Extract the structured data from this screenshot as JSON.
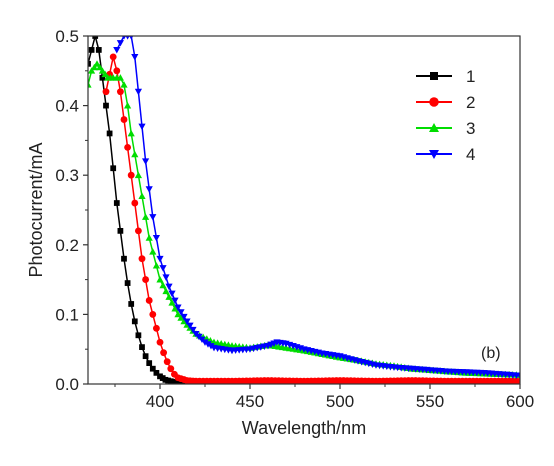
{
  "chart_data": {
    "type": "line",
    "title": "",
    "xlabel": "Wavelength/nm",
    "ylabel": "Photocurrent/mA",
    "xlim": [
      360,
      600
    ],
    "ylim": [
      0,
      0.5
    ],
    "x_ticks": [
      400,
      450,
      500,
      550,
      600
    ],
    "x_tick_labels": [
      "400",
      "450",
      "500",
      "550",
      "600"
    ],
    "y_ticks": [
      0,
      0.1,
      0.2,
      0.3,
      0.4,
      0.5
    ],
    "y_tick_labels": [
      "0.0",
      "0.1",
      "0.2",
      "0.3",
      "0.4",
      "0.5"
    ],
    "annotation": "(b)",
    "legend_position": "top-right",
    "grid": false,
    "series": [
      {
        "name": "1",
        "color": "#000000",
        "marker": "square",
        "points": [
          [
            360,
            0.46
          ],
          [
            364,
            0.5
          ],
          [
            366,
            0.48
          ],
          [
            370,
            0.4
          ],
          [
            372,
            0.36
          ],
          [
            374,
            0.31
          ],
          [
            376,
            0.26
          ],
          [
            378,
            0.22
          ],
          [
            380,
            0.18
          ],
          [
            382,
            0.145
          ],
          [
            384,
            0.115
          ],
          [
            386,
            0.09
          ],
          [
            388,
            0.07
          ],
          [
            390,
            0.053
          ],
          [
            392,
            0.04
          ],
          [
            394,
            0.03
          ],
          [
            396,
            0.022
          ],
          [
            398,
            0.016
          ],
          [
            400,
            0.011
          ],
          [
            403,
            0.006
          ],
          [
            406,
            0.004
          ],
          [
            410,
            0.002
          ],
          [
            420,
            0.002
          ],
          [
            440,
            0.002
          ],
          [
            460,
            0.002
          ],
          [
            480,
            0.002
          ],
          [
            500,
            0.002
          ],
          [
            520,
            0.002
          ],
          [
            540,
            0.002
          ],
          [
            560,
            0.002
          ],
          [
            580,
            0.002
          ],
          [
            600,
            0.002
          ]
        ]
      },
      {
        "name": "2",
        "color": "#ff0000",
        "marker": "circle",
        "points": [
          [
            370,
            0.42
          ],
          [
            374,
            0.47
          ],
          [
            376,
            0.45
          ],
          [
            378,
            0.42
          ],
          [
            380,
            0.38
          ],
          [
            382,
            0.34
          ],
          [
            384,
            0.3
          ],
          [
            386,
            0.26
          ],
          [
            388,
            0.22
          ],
          [
            390,
            0.18
          ],
          [
            392,
            0.15
          ],
          [
            394,
            0.12
          ],
          [
            396,
            0.1
          ],
          [
            398,
            0.08
          ],
          [
            400,
            0.06
          ],
          [
            402,
            0.045
          ],
          [
            404,
            0.032
          ],
          [
            406,
            0.022
          ],
          [
            408,
            0.014
          ],
          [
            410,
            0.009
          ],
          [
            415,
            0.005
          ],
          [
            420,
            0.004
          ],
          [
            440,
            0.004
          ],
          [
            460,
            0.005
          ],
          [
            480,
            0.004
          ],
          [
            500,
            0.005
          ],
          [
            520,
            0.004
          ],
          [
            540,
            0.005
          ],
          [
            560,
            0.004
          ],
          [
            580,
            0.004
          ],
          [
            600,
            0.004
          ]
        ]
      },
      {
        "name": "3",
        "color": "#00dd00",
        "marker": "triangle-up",
        "points": [
          [
            360,
            0.43
          ],
          [
            362,
            0.45
          ],
          [
            365,
            0.46
          ],
          [
            368,
            0.45
          ],
          [
            371,
            0.44
          ],
          [
            374,
            0.44
          ],
          [
            378,
            0.44
          ],
          [
            380,
            0.43
          ],
          [
            382,
            0.4
          ],
          [
            384,
            0.36
          ],
          [
            386,
            0.33
          ],
          [
            388,
            0.3
          ],
          [
            390,
            0.27
          ],
          [
            392,
            0.24
          ],
          [
            394,
            0.21
          ],
          [
            396,
            0.19
          ],
          [
            398,
            0.17
          ],
          [
            400,
            0.15
          ],
          [
            405,
            0.125
          ],
          [
            410,
            0.1
          ],
          [
            415,
            0.085
          ],
          [
            420,
            0.072
          ],
          [
            430,
            0.06
          ],
          [
            440,
            0.055
          ],
          [
            450,
            0.052
          ],
          [
            460,
            0.056
          ],
          [
            470,
            0.052
          ],
          [
            480,
            0.048
          ],
          [
            490,
            0.043
          ],
          [
            500,
            0.038
          ],
          [
            510,
            0.034
          ],
          [
            520,
            0.029
          ],
          [
            530,
            0.026
          ],
          [
            540,
            0.022
          ],
          [
            550,
            0.02
          ],
          [
            560,
            0.018
          ],
          [
            570,
            0.016
          ],
          [
            580,
            0.015
          ],
          [
            590,
            0.014
          ],
          [
            600,
            0.013
          ]
        ]
      },
      {
        "name": "4",
        "color": "#0000ff",
        "marker": "triangle-down",
        "points": [
          [
            376,
            0.48
          ],
          [
            380,
            0.5
          ],
          [
            384,
            0.5
          ],
          [
            386,
            0.47
          ],
          [
            388,
            0.42
          ],
          [
            390,
            0.37
          ],
          [
            392,
            0.32
          ],
          [
            394,
            0.28
          ],
          [
            396,
            0.24
          ],
          [
            398,
            0.21
          ],
          [
            400,
            0.18
          ],
          [
            405,
            0.14
          ],
          [
            410,
            0.11
          ],
          [
            415,
            0.09
          ],
          [
            420,
            0.072
          ],
          [
            425,
            0.06
          ],
          [
            430,
            0.052
          ],
          [
            440,
            0.048
          ],
          [
            450,
            0.05
          ],
          [
            460,
            0.055
          ],
          [
            465,
            0.06
          ],
          [
            470,
            0.058
          ],
          [
            480,
            0.05
          ],
          [
            490,
            0.044
          ],
          [
            500,
            0.04
          ],
          [
            510,
            0.033
          ],
          [
            520,
            0.027
          ],
          [
            530,
            0.024
          ],
          [
            540,
            0.022
          ],
          [
            550,
            0.02
          ],
          [
            560,
            0.018
          ],
          [
            570,
            0.017
          ],
          [
            580,
            0.016
          ],
          [
            590,
            0.014
          ],
          [
            600,
            0.012
          ]
        ]
      }
    ]
  }
}
